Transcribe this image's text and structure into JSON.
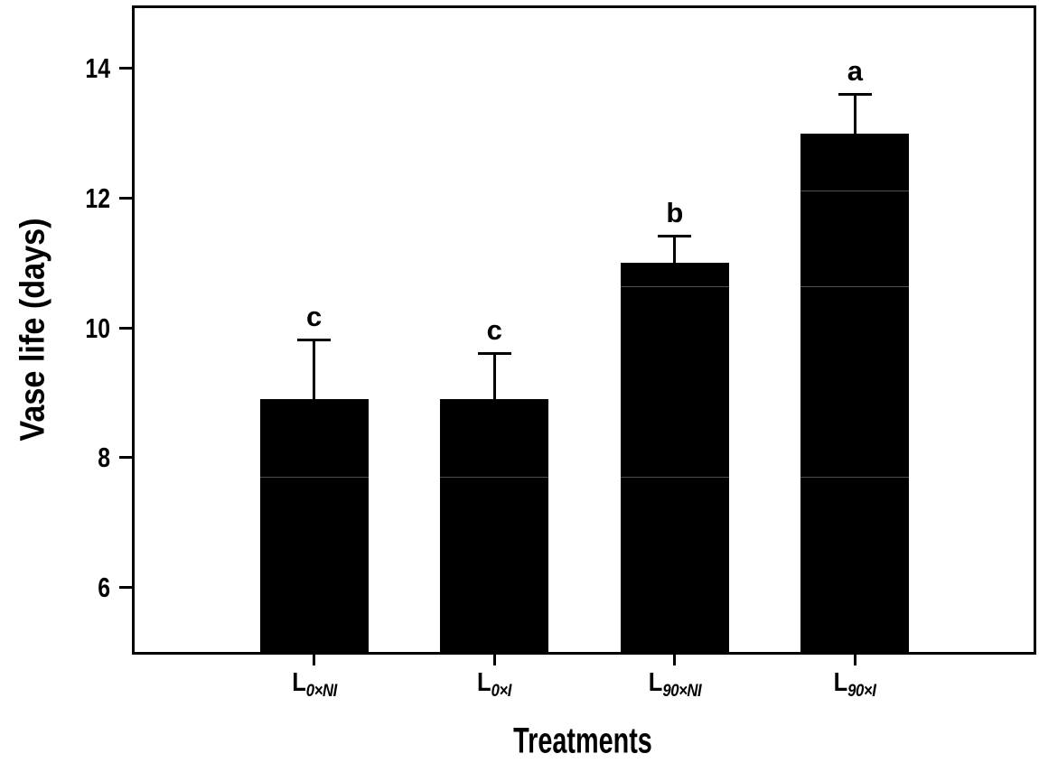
{
  "figure": {
    "background_color": "#ffffff",
    "axis_color": "#000000"
  },
  "chart_data": {
    "type": "bar",
    "title": "",
    "xlabel": "Treatments",
    "ylabel": "Vase life (days)",
    "categories": [
      {
        "base": "L",
        "sub": "0×NI",
        "text": "L0×NI"
      },
      {
        "base": "L",
        "sub": "0×I",
        "text": "L0×I"
      },
      {
        "base": "L",
        "sub": "90×NI",
        "text": "L90×NI"
      },
      {
        "base": "L",
        "sub": "90×I",
        "text": "L90×I"
      }
    ],
    "values": [
      8.9,
      8.9,
      11.0,
      13.0
    ],
    "errors_upper": [
      0.9,
      0.7,
      0.4,
      0.6
    ],
    "sig_letters": [
      "c",
      "c",
      "b",
      "a"
    ],
    "ylim": [
      5,
      15
    ],
    "yticks": [
      6,
      8,
      10,
      12,
      14
    ],
    "grid": false,
    "legend": "none",
    "bar_color": "#000000",
    "error_bar_direction": "upper"
  }
}
